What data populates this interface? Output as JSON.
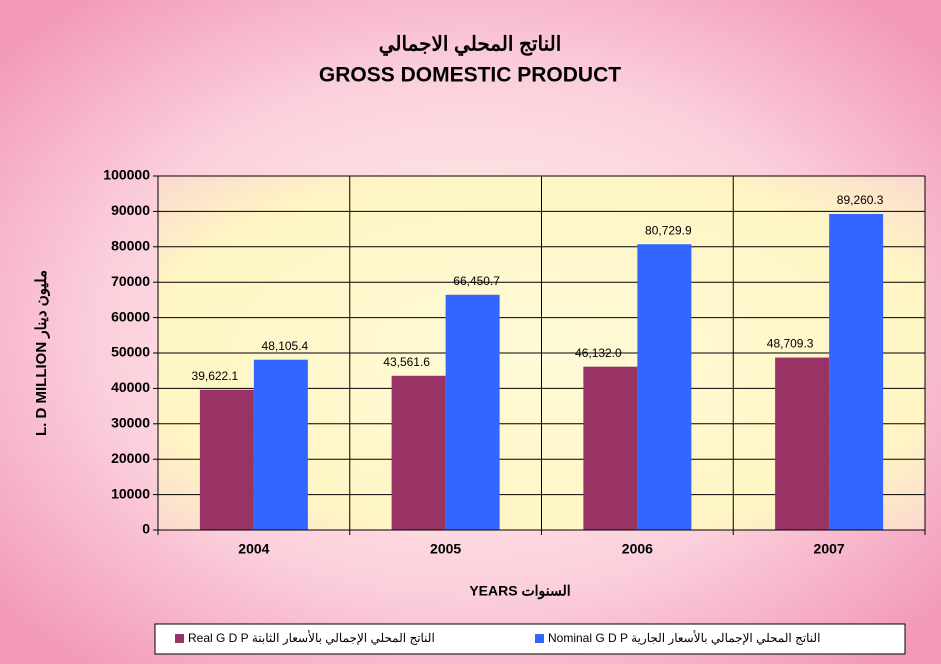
{
  "chart_data": {
    "type": "bar",
    "title": "الناتج المحلي الاجمالي",
    "subtitle": "GROSS DOMESTIC PRODUCT",
    "x_label": "YEARS السنوات",
    "y_label": "L. D MILLION مليون دينار",
    "categories": [
      "2004",
      "2005",
      "2006",
      "2007"
    ],
    "series": [
      {
        "name": "Real G D P الناتج المحلي الإجمالي بالأسعار الثابتة",
        "color": "#993366",
        "values": [
          39622.1,
          43561.6,
          46132.0,
          48709.3
        ],
        "value_labels": [
          "39,622.1",
          "43,561.6",
          "46,132.0",
          "48,709.3"
        ]
      },
      {
        "name": "Nominal G D P الناتج المحلي الإجمالي بالأسعار الجارية",
        "color": "#3366ff",
        "values": [
          48105.4,
          66450.7,
          80729.9,
          89260.3
        ],
        "value_labels": [
          "48,105.4",
          "66,450.7",
          "80,729.9",
          "89,260.3"
        ]
      }
    ],
    "ylim": [
      0,
      100000
    ],
    "yticks": [
      0,
      10000,
      20000,
      30000,
      40000,
      50000,
      60000,
      70000,
      80000,
      90000,
      100000
    ],
    "grid": true,
    "legend": "bottom"
  }
}
